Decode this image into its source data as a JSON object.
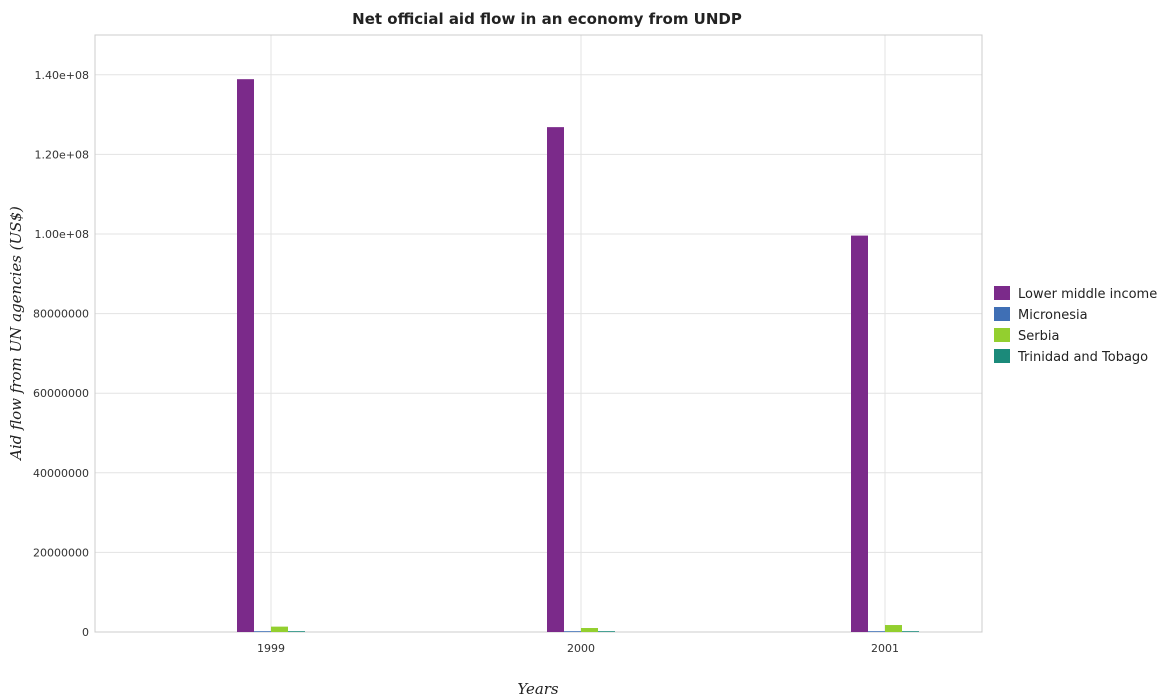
{
  "chart_data": {
    "type": "bar",
    "title": "Net official aid flow in an economy from UNDP",
    "xlabel": "Years",
    "ylabel": "Aid flow from UN agencies (US$)",
    "categories": [
      "1999",
      "2000",
      "2001"
    ],
    "series": [
      {
        "name": "Lower middle income",
        "color": "#7b2a8a",
        "values": [
          138900000,
          126850000,
          99600000
        ]
      },
      {
        "name": "Micronesia",
        "color": "#3f6fb5",
        "values": [
          200000,
          170000,
          90000
        ]
      },
      {
        "name": "Serbia",
        "color": "#93cf2f",
        "values": [
          1350000,
          1000000,
          1750000
        ]
      },
      {
        "name": "Trinidad and Tobago",
        "color": "#1b8a7a",
        "values": [
          40000,
          30000,
          60000
        ]
      }
    ],
    "ylim": [
      0,
      150000000
    ],
    "yticks": [
      0,
      20000000,
      40000000,
      60000000,
      80000000,
      100000000,
      120000000,
      140000000
    ],
    "ytick_labels": [
      "0",
      "20000000",
      "40000000",
      "60000000",
      "80000000",
      "1.00e+08",
      "1.20e+08",
      "1.40e+08"
    ],
    "grid": true,
    "legend_position": "right"
  }
}
